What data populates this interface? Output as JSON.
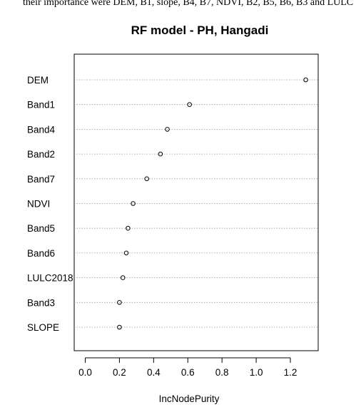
{
  "caption": "their importance were DEM, B1, slope, B4, B7, NDVI, B2, B5, B6, B3 and LULC",
  "chart_data": {
    "type": "scatter",
    "title": "RF model - PH, Hangadi",
    "xlabel": "IncNodePurity",
    "ylabel": "",
    "xlim": [
      0.0,
      1.3
    ],
    "xticks": [
      "0.0",
      "0.2",
      "0.4",
      "0.6",
      "0.8",
      "1.0",
      "1.2"
    ],
    "grid": "dotted horizontal lines per variable",
    "categories": [
      "DEM",
      "Band1",
      "Band4",
      "Band2",
      "Band7",
      "NDVI",
      "Band5",
      "Band6",
      "LULC2018",
      "Band3",
      "SLOPE"
    ],
    "values": [
      1.29,
      0.61,
      0.48,
      0.44,
      0.36,
      0.28,
      0.25,
      0.24,
      0.22,
      0.2,
      0.2
    ]
  }
}
